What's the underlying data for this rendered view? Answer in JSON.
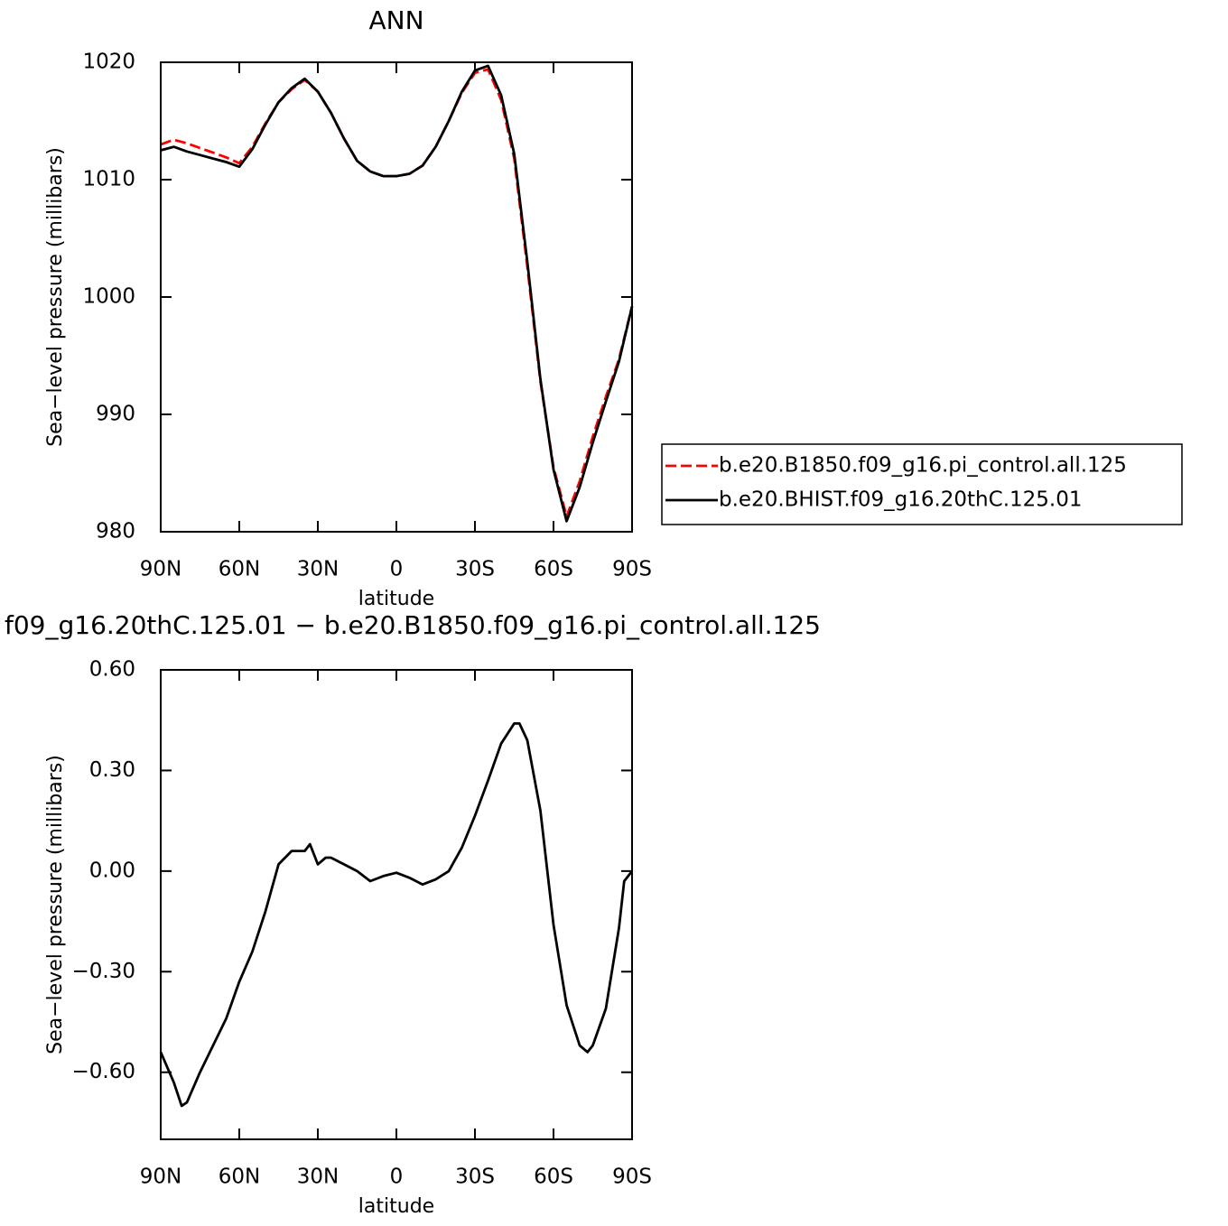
{
  "chart_data": [
    {
      "type": "line",
      "title": "ANN",
      "xlabel": "latitude",
      "ylabel": "Sea−level pressure (millibars)",
      "x": [
        90,
        85,
        80,
        75,
        70,
        65,
        60,
        55,
        50,
        45,
        40,
        35,
        30,
        25,
        20,
        15,
        10,
        5,
        0,
        -5,
        -10,
        -15,
        -20,
        -25,
        -30,
        -35,
        -40,
        -45,
        -50,
        -55,
        -60,
        -65,
        -70,
        -75,
        -80,
        -85,
        -90
      ],
      "series": [
        {
          "name": "b.e20.B1850.f09_g16.pi_control.all.125",
          "color": "#ff0000",
          "linestyle": "dashed",
          "values": [
            1013.0,
            1013.4,
            1013.1,
            1012.7,
            1012.3,
            1011.9,
            1011.4,
            1012.8,
            1014.8,
            1016.6,
            1017.7,
            1018.5,
            1017.5,
            1015.7,
            1013.5,
            1011.6,
            1010.7,
            1010.3,
            1010.3,
            1010.5,
            1011.2,
            1012.8,
            1015.0,
            1017.4,
            1019.1,
            1019.4,
            1016.8,
            1011.8,
            1002.6,
            992.8,
            985.5,
            981.3,
            984.3,
            988.1,
            991.5,
            994.7,
            999.2
          ]
        },
        {
          "name": "b.e20.BHIST.f09_g16.20thC.125.01",
          "color": "#000000",
          "linestyle": "solid",
          "values": [
            1012.5,
            1012.8,
            1012.4,
            1012.1,
            1011.8,
            1011.5,
            1011.1,
            1012.6,
            1014.7,
            1016.6,
            1017.8,
            1018.6,
            1017.5,
            1015.7,
            1013.5,
            1011.6,
            1010.7,
            1010.3,
            1010.3,
            1010.5,
            1011.2,
            1012.8,
            1015.0,
            1017.5,
            1019.3,
            1019.7,
            1017.2,
            1012.2,
            1003.0,
            993.0,
            985.3,
            980.9,
            983.8,
            987.6,
            991.1,
            994.5,
            999.2
          ]
        }
      ],
      "xlim": [
        90,
        -90
      ],
      "xticks": [
        {
          "value": 90,
          "label": "90N"
        },
        {
          "value": 60,
          "label": "60N"
        },
        {
          "value": 30,
          "label": "30N"
        },
        0,
        {
          "value": -30,
          "label": "30S"
        },
        {
          "value": -60,
          "label": "60S"
        },
        {
          "value": -90,
          "label": "90S"
        }
      ],
      "ylim": [
        980,
        1020
      ],
      "yticks": [
        980,
        990,
        1000,
        1010,
        1020
      ],
      "legend": "right"
    },
    {
      "type": "line",
      "title": "f09_g16.20thC.125.01 − b.e20.B1850.f09_g16.pi_control.all.125",
      "xlabel": "latitude",
      "ylabel": "Sea−level pressure (millibars)",
      "x": [
        90,
        85,
        82,
        80,
        75,
        70,
        65,
        60,
        55,
        50,
        45,
        40,
        35,
        33,
        30,
        27,
        25,
        20,
        15,
        10,
        5,
        0,
        -5,
        -10,
        -15,
        -20,
        -25,
        -30,
        -35,
        -40,
        -45,
        -47,
        -50,
        -55,
        -60,
        -65,
        -70,
        -73,
        -75,
        -80,
        -85,
        -87,
        -90
      ],
      "series": [
        {
          "color": "#000000",
          "linestyle": "solid",
          "values": [
            -0.54,
            -0.63,
            -0.7,
            -0.69,
            -0.6,
            -0.52,
            -0.44,
            -0.33,
            -0.24,
            -0.12,
            0.02,
            0.06,
            0.06,
            0.08,
            0.02,
            0.04,
            0.04,
            0.02,
            0.0,
            -0.03,
            -0.015,
            -0.005,
            -0.02,
            -0.04,
            -0.025,
            0.0,
            0.07,
            0.165,
            0.27,
            0.38,
            0.44,
            0.44,
            0.39,
            0.18,
            -0.16,
            -0.4,
            -0.52,
            -0.54,
            -0.52,
            -0.41,
            -0.17,
            -0.03,
            0.0
          ]
        }
      ],
      "xlim": [
        90,
        -90
      ],
      "xticks": [
        {
          "value": 90,
          "label": "90N"
        },
        {
          "value": 60,
          "label": "60N"
        },
        {
          "value": 30,
          "label": "30N"
        },
        0,
        {
          "value": -30,
          "label": "30S"
        },
        {
          "value": -60,
          "label": "60S"
        },
        {
          "value": -90,
          "label": "90S"
        }
      ],
      "ylim": [
        -0.8,
        0.6
      ],
      "yticks": [
        {
          "value": -0.6,
          "label": "−0.60"
        },
        {
          "value": -0.3,
          "label": "−0.30"
        },
        {
          "value": 0,
          "label": "0.00"
        },
        {
          "value": 0.3,
          "label": "0.30"
        },
        {
          "value": 0.6,
          "label": "0.60"
        }
      ]
    }
  ]
}
